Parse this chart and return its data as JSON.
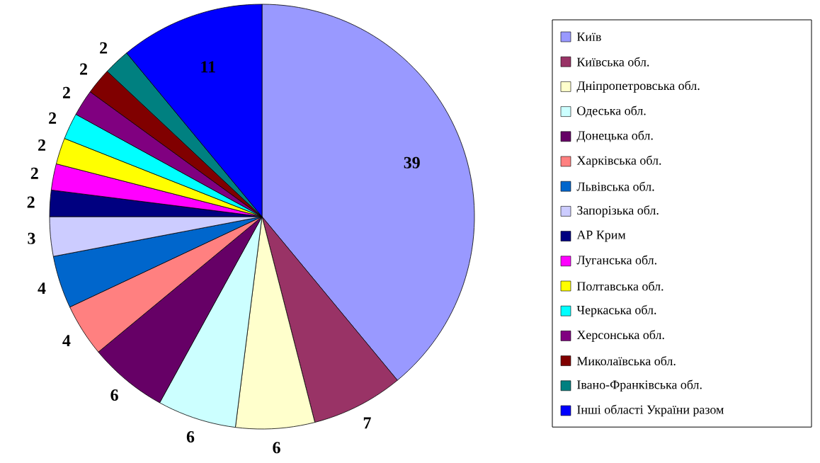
{
  "chart_data": {
    "type": "pie",
    "categories": [
      "Київ",
      "Київська обл.",
      "Дніпропетровська обл.",
      "Одеська обл.",
      "Донецька обл.",
      "Харківська обл.",
      "Львівська обл.",
      "Запорізька обл.",
      "АР Крим",
      "Луганська обл.",
      "Полтавська обл.",
      "Черкаська обл.",
      "Херсонська обл.",
      "Миколаївська обл.",
      "Івано-Франківська обл.",
      "Інші області України разом"
    ],
    "values": [
      39,
      7,
      6,
      6,
      6,
      4,
      4,
      3,
      2,
      2,
      2,
      2,
      2,
      2,
      2,
      11
    ],
    "colors": [
      "#9999ff",
      "#993366",
      "#ffffcc",
      "#ccffff",
      "#660066",
      "#ff8080",
      "#0066cc",
      "#ccccff",
      "#000080",
      "#ff00ff",
      "#ffff00",
      "#00ffff",
      "#800080",
      "#800000",
      "#008080",
      "#0000ff"
    ],
    "data_labels": true,
    "legend": "right"
  }
}
